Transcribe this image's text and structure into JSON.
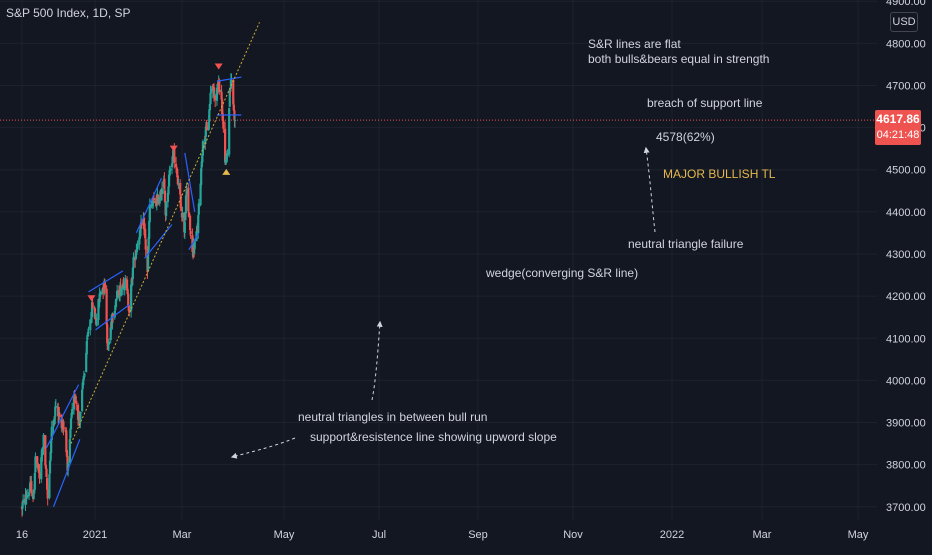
{
  "header": {
    "symbol_title": "S&P 500 Index, 1D, SP",
    "currency": "USD"
  },
  "price_tag": {
    "value": "4617.86",
    "countdown": "04:21:48"
  },
  "annotations": {
    "sr_flat_line1": "S&R lines are flat",
    "sr_flat_line2": "both bulls&bears equal in strength",
    "breach": "breach of support line",
    "fib_level": "4578(62%)",
    "major_tl": "MAJOR BULLISH TL",
    "neutral_failure": "neutral triangle failure",
    "wedge": "wedge(converging S&R line)",
    "neutral_triangles": "neutral triangles in between bull run",
    "sr_upward": "support&resistence line showing upword slope"
  },
  "colors": {
    "background": "#131722",
    "up": "#26a69a",
    "down": "#ef5350",
    "pattern_lines": "#2962ff",
    "trendline": "#c9b036",
    "major_tl_text": "#e6b84c",
    "text": "#d1d4dc",
    "current_price_line": "#ef5350"
  },
  "chart_data": {
    "type": "candlestick",
    "symbol": "S&P 500 Index",
    "interval": "1D",
    "exchange": "SP",
    "y_ticks": [
      3700,
      3800,
      3900,
      4000,
      4100,
      4200,
      4300,
      4400,
      4500,
      4600,
      4700,
      4800,
      4900
    ],
    "x_tick_labels": [
      "16",
      "2021",
      "Mar",
      "May",
      "Jul",
      "Sep",
      "Nov",
      "2022",
      "Mar",
      "May"
    ],
    "ylim": [
      3680,
      4900
    ],
    "current_price": 4617.86,
    "price_path": [
      [
        "2020-12-16",
        3700
      ],
      [
        "2020-12-31",
        3750
      ],
      [
        "2021-01-05",
        3720
      ],
      [
        "2021-01-08",
        3820
      ],
      [
        "2021-01-15",
        3770
      ],
      [
        "2021-01-22",
        3860
      ],
      [
        "2021-01-29",
        3720
      ],
      [
        "2021-02-05",
        3880
      ],
      [
        "2021-02-12",
        3940
      ],
      [
        "2021-02-19",
        3910
      ],
      [
        "2021-03-01",
        3880
      ],
      [
        "2021-03-04",
        3770
      ],
      [
        "2021-03-10",
        3900
      ],
      [
        "2021-03-17",
        3970
      ],
      [
        "2021-03-24",
        3900
      ],
      [
        "2021-04-01",
        4010
      ],
      [
        "2021-04-09",
        4120
      ],
      [
        "2021-04-16",
        4180
      ],
      [
        "2021-04-22",
        4140
      ],
      [
        "2021-04-29",
        4210
      ],
      [
        "2021-05-07",
        4230
      ],
      [
        "2021-05-12",
        4070
      ],
      [
        "2021-05-20",
        4160
      ],
      [
        "2021-05-28",
        4200
      ],
      [
        "2021-06-10",
        4240
      ],
      [
        "2021-06-18",
        4170
      ],
      [
        "2021-06-25",
        4280
      ],
      [
        "2021-07-07",
        4360
      ],
      [
        "2021-07-13",
        4370
      ],
      [
        "2021-07-19",
        4260
      ],
      [
        "2021-07-23",
        4410
      ],
      [
        "2021-08-06",
        4430
      ],
      [
        "2021-08-16",
        4470
      ],
      [
        "2021-08-19",
        4400
      ],
      [
        "2021-08-27",
        4510
      ],
      [
        "2021-09-02",
        4540
      ],
      [
        "2021-09-10",
        4460
      ],
      [
        "2021-09-20",
        4360
      ],
      [
        "2021-09-24",
        4450
      ],
      [
        "2021-10-04",
        4300
      ],
      [
        "2021-10-13",
        4360
      ],
      [
        "2021-10-21",
        4550
      ],
      [
        "2021-11-01",
        4620
      ],
      [
        "2021-11-05",
        4700
      ],
      [
        "2021-11-12",
        4680
      ],
      [
        "2021-11-18",
        4700
      ],
      [
        "2021-11-22",
        4690
      ],
      [
        "2021-11-26",
        4590
      ],
      [
        "2021-11-30",
        4510
      ],
      [
        "2021-12-03",
        4540
      ],
      [
        "2021-12-07",
        4690
      ],
      [
        "2021-12-10",
        4710
      ],
      [
        "2021-12-14",
        4640
      ],
      [
        "2021-12-16",
        4618
      ]
    ],
    "markers": [
      {
        "kind": "triangle-down",
        "date": "2021-04-14",
        "price": 4195
      },
      {
        "kind": "triangle-down",
        "date": "2021-09-02",
        "price": 4550
      },
      {
        "kind": "triangle-down",
        "date": "2021-11-18",
        "price": 4745
      },
      {
        "kind": "triangle-up",
        "date": "2021-12-01",
        "price": 4495
      }
    ],
    "drawings": {
      "channels": [
        {
          "pattern": "neutral triangle",
          "resistance": [
            [
              "2021-01-27",
              3840
            ],
            [
              "2021-03-23",
              3990
            ]
          ],
          "support": [
            [
              "2021-02-08",
              3700
            ],
            [
              "2021-03-25",
              3860
            ]
          ]
        },
        {
          "pattern": "neutral triangle",
          "resistance": [
            [
              "2021-04-09",
              4210
            ],
            [
              "2021-06-07",
              4260
            ]
          ],
          "support": [
            [
              "2021-04-21",
              4120
            ],
            [
              "2021-06-18",
              4180
            ]
          ]
        },
        {
          "pattern": "neutral triangle",
          "resistance": [
            [
              "2021-06-30",
              4350
            ],
            [
              "2021-08-12",
              4480
            ]
          ],
          "support": [
            [
              "2021-07-14",
              4290
            ],
            [
              "2021-08-30",
              4370
            ]
          ]
        },
        {
          "pattern": "wedge",
          "resistance": [
            [
              "2021-09-21",
              4540
            ],
            [
              "2021-10-08",
              4400
            ]
          ],
          "support": [
            [
              "2021-09-28",
              4310
            ],
            [
              "2021-10-15",
              4350
            ]
          ]
        },
        {
          "pattern": "flat S&R",
          "resistance": [
            [
              "2021-11-15",
              4710
            ],
            [
              "2021-12-27",
              4720
            ]
          ],
          "support": [
            [
              "2021-11-15",
              4630
            ],
            [
              "2021-12-27",
              4630
            ]
          ]
        }
      ],
      "major_bullish_trendline": [
        [
          "2021-03-10",
          3850
        ],
        [
          "2022-01-27",
          4850
        ]
      ]
    }
  }
}
